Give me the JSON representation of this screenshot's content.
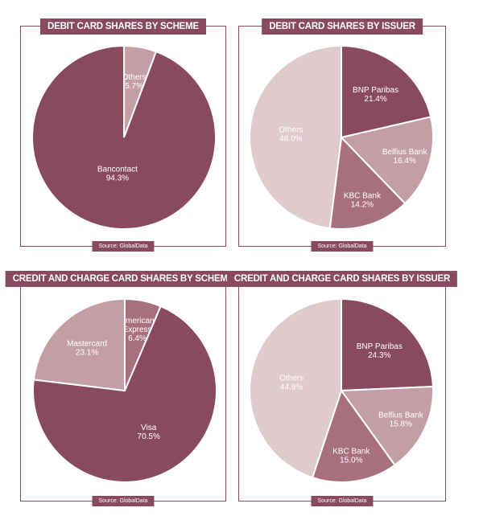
{
  "colors": {
    "panel_border": "#8a4a5e",
    "title_bg": "#8a4a5e",
    "label_light": "#ffffff",
    "label_dark": "#ffffff"
  },
  "panels": [
    {
      "title": "DEBIT CARD SHARES BY SCHEME",
      "source": "Source: GlobalData"
    },
    {
      "title": "DEBIT CARD SHARES BY ISSUER",
      "source": "Source: GlobalData"
    },
    {
      "title": "CREDIT AND CHARGE CARD SHARES BY SCHEME",
      "source": "Source: GlobalData"
    },
    {
      "title": "CREDIT AND CHARGE CARD SHARES BY ISSUER",
      "source": "Source: GlobalData"
    }
  ],
  "chart_data": [
    {
      "type": "pie",
      "title": "DEBIT CARD SHARES BY SCHEME",
      "slices": [
        {
          "label": "Others",
          "value": 5.7,
          "value_label": "5.7%",
          "color": "#c49ea6"
        },
        {
          "label": "Bancontact",
          "value": 94.3,
          "value_label": "94.3%",
          "color": "#8a4a5e"
        }
      ]
    },
    {
      "type": "pie",
      "title": "DEBIT CARD SHARES BY ISSUER",
      "slices": [
        {
          "label": "BNP Paribas",
          "value": 21.4,
          "value_label": "21.4%",
          "color": "#8a4a5e"
        },
        {
          "label": "Belfius Bank",
          "value": 16.4,
          "value_label": "16.4%",
          "color": "#c49ea6"
        },
        {
          "label": "KBC Bank",
          "value": 14.2,
          "value_label": "14.2%",
          "color": "#a8707f"
        },
        {
          "label": "Others",
          "value": 48.0,
          "value_label": "48.0%",
          "color": "#dfcace"
        }
      ]
    },
    {
      "type": "pie",
      "title": "CREDIT AND CHARGE CARD SHARES BY SCHEME",
      "slices": [
        {
          "label": "American Express",
          "value": 6.4,
          "value_label": "6.4%",
          "color": "#a8707f"
        },
        {
          "label": "Visa",
          "value": 70.5,
          "value_label": "70.5%",
          "color": "#8a4a5e"
        },
        {
          "label": "Mastercard",
          "value": 23.1,
          "value_label": "23.1%",
          "color": "#c49ea6"
        }
      ]
    },
    {
      "type": "pie",
      "title": "CREDIT AND CHARGE CARD SHARES BY ISSUER",
      "slices": [
        {
          "label": "BNP Paribas",
          "value": 24.3,
          "value_label": "24.3%",
          "color": "#8a4a5e"
        },
        {
          "label": "Belfius Bank",
          "value": 15.8,
          "value_label": "15.8%",
          "color": "#c49ea6"
        },
        {
          "label": "KBC Bank",
          "value": 15.0,
          "value_label": "15.0%",
          "color": "#a8707f"
        },
        {
          "label": "Others",
          "value": 44.9,
          "value_label": "44.9%",
          "color": "#dfcace"
        }
      ]
    }
  ]
}
